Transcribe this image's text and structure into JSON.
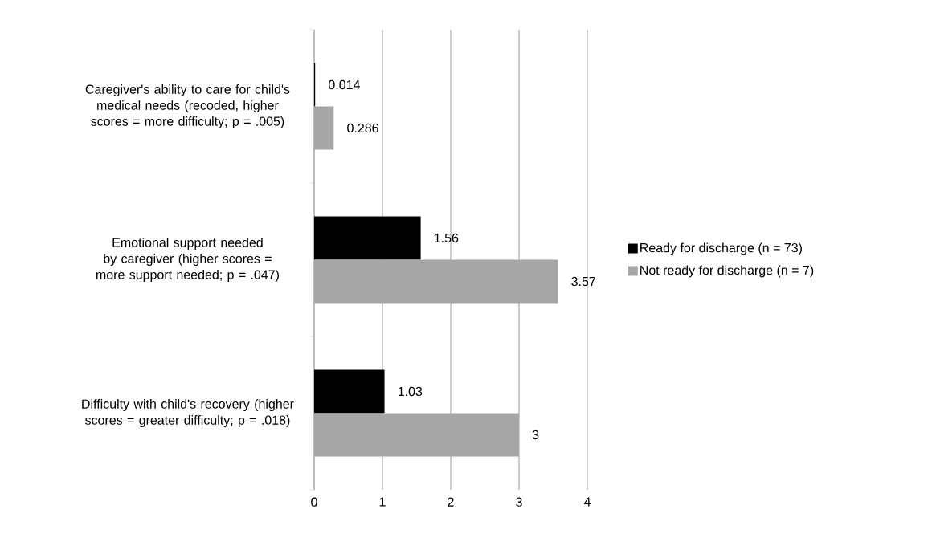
{
  "chart_data": {
    "type": "bar",
    "orientation": "horizontal",
    "categories": [
      "Caregiver's ability to care for child's medical needs (recoded, higher scores = more difficulty; p = .005)",
      "Emotional support needed by caregiver (higher scores = more support needed; p = .047)",
      "Difficulty with child's recovery (higher scores = greater difficulty; p = .018)"
    ],
    "series": [
      {
        "name": "Ready for discharge (n = 73)",
        "color": "#000000",
        "values": [
          0.014,
          1.56,
          1.03
        ]
      },
      {
        "name": "Not ready for discharge (n = 7)",
        "color": "#a6a6a6",
        "values": [
          0.286,
          3.57,
          3
        ]
      }
    ],
    "xlim": [
      0,
      4
    ],
    "xticks": [
      0,
      1,
      2,
      3,
      4
    ],
    "grid": "x",
    "legend": "right",
    "data_labels": true
  }
}
